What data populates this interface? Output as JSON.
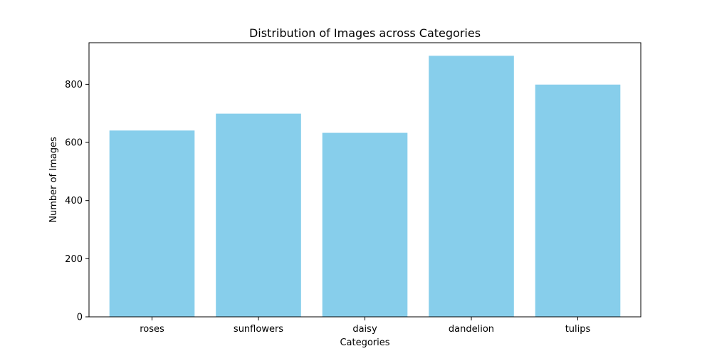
{
  "chart_data": {
    "type": "bar",
    "title": "Distribution of Images across Categories",
    "xlabel": "Categories",
    "ylabel": "Number of Images",
    "categories": [
      "roses",
      "sunflowers",
      "daisy",
      "dandelion",
      "tulips"
    ],
    "values": [
      641,
      699,
      633,
      898,
      799
    ],
    "ylim": [
      0,
      943
    ],
    "yticks": [
      0,
      200,
      400,
      600,
      800
    ],
    "bar_color": "#87ceeb",
    "grid": false,
    "legend": "none"
  }
}
